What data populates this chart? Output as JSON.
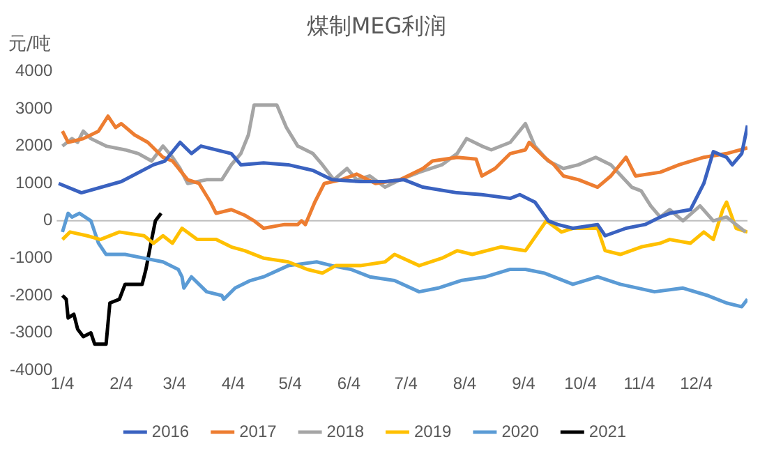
{
  "chart_data": {
    "type": "line",
    "title": "煤制MEG利润",
    "ylabel": "元/吨",
    "xlim": [
      "--01-01",
      "--12-31"
    ],
    "ylim": [
      -4000,
      4000
    ],
    "xticks": [
      {
        "value": "--01-04",
        "label": "1/4"
      },
      {
        "value": "--02-04",
        "label": "2/4"
      },
      {
        "value": "--03-04",
        "label": "3/4"
      },
      {
        "value": "--04-04",
        "label": "4/4"
      },
      {
        "value": "--05-04",
        "label": "5/4"
      },
      {
        "value": "--06-04",
        "label": "6/4"
      },
      {
        "value": "--07-04",
        "label": "7/4"
      },
      {
        "value": "--08-04",
        "label": "8/4"
      },
      {
        "value": "--09-04",
        "label": "9/4"
      },
      {
        "value": "--10-04",
        "label": "10/4"
      },
      {
        "value": "--11-04",
        "label": "11/4"
      },
      {
        "value": "--12-04",
        "label": "12/4"
      }
    ],
    "yticks": [
      -4000,
      -3000,
      -2000,
      -1000,
      0,
      1000,
      2000,
      3000,
      4000
    ],
    "grid": false,
    "ref_lines": [
      {
        "axis": "y",
        "value": 0,
        "color": "#bfbfbf"
      }
    ],
    "legend": "bottom",
    "marker": "none",
    "line_style": "solid",
    "series": [
      {
        "name": "2016",
        "color": "#3a62c0",
        "x": [
          "--01-02",
          "--01-14",
          "--02-04",
          "--02-21",
          "--02-27",
          "--03-07",
          "--03-13",
          "--03-18",
          "--04-03",
          "--04-08",
          "--04-20",
          "--05-03",
          "--05-16",
          "--05-26",
          "--06-10",
          "--06-23",
          "--07-03",
          "--07-13",
          "--07-31",
          "--08-13",
          "--08-28",
          "--09-02",
          "--09-10",
          "--09-17",
          "--09-22",
          "--09-30",
          "--10-13",
          "--10-17",
          "--10-28",
          "--11-07",
          "--11-15",
          "--11-20",
          "--12-01",
          "--12-08",
          "--12-13",
          "--12-20",
          "--12-23",
          "--12-28",
          "--12-31"
        ],
        "values": [
          1000,
          750,
          1050,
          1500,
          1600,
          2100,
          1800,
          2000,
          1800,
          1500,
          1550,
          1500,
          1350,
          1100,
          1050,
          1050,
          1100,
          900,
          750,
          700,
          600,
          700,
          500,
          0,
          -100,
          -200,
          -100,
          -400,
          -200,
          -100,
          100,
          200,
          300,
          1000,
          1850,
          1700,
          1500,
          1800,
          2550
        ]
      },
      {
        "name": "2017",
        "color": "#ed7d31",
        "x": [
          "--01-04",
          "--01-07",
          "--01-15",
          "--01-23",
          "--01-28",
          "--02-01",
          "--02-04",
          "--02-11",
          "--02-18",
          "--02-26",
          "--03-03",
          "--03-11",
          "--03-17",
          "--03-23",
          "--03-26",
          "--04-03",
          "--04-10",
          "--04-15",
          "--04-20",
          "--05-01",
          "--05-08",
          "--05-10",
          "--05-12",
          "--05-17",
          "--05-22",
          "--05-31",
          "--06-08",
          "--06-18",
          "--07-01",
          "--07-13",
          "--07-18",
          "--07-31",
          "--08-10",
          "--08-13",
          "--08-20",
          "--08-28",
          "--09-05",
          "--09-07",
          "--09-15",
          "--09-20",
          "--09-25",
          "--10-03",
          "--10-13",
          "--10-20",
          "--10-28",
          "--11-02",
          "--11-15",
          "--11-25",
          "--12-08",
          "--12-20",
          "--12-31"
        ],
        "values": [
          2400,
          2100,
          2200,
          2400,
          2800,
          2500,
          2600,
          2300,
          2100,
          1700,
          1600,
          1100,
          1000,
          500,
          200,
          300,
          150,
          0,
          -200,
          -100,
          -100,
          0,
          -100,
          500,
          1000,
          1100,
          1250,
          1000,
          1100,
          1400,
          1600,
          1700,
          1650,
          1200,
          1400,
          1800,
          1900,
          2100,
          1700,
          1500,
          1200,
          1100,
          900,
          1200,
          1700,
          1200,
          1300,
          1500,
          1700,
          1800,
          1950
        ]
      },
      {
        "name": "2018",
        "color": "#a5a5a5",
        "x": [
          "--01-04",
          "--01-09",
          "--01-12",
          "--01-15",
          "--01-19",
          "--01-27",
          "--02-06",
          "--02-13",
          "--02-20",
          "--02-26",
          "--03-03",
          "--03-07",
          "--03-11",
          "--03-21",
          "--03-29",
          "--04-03",
          "--04-08",
          "--04-12",
          "--04-15",
          "--04-27",
          "--05-02",
          "--05-08",
          "--05-16",
          "--05-21",
          "--05-27",
          "--06-03",
          "--06-08",
          "--06-15",
          "--06-23",
          "--07-01",
          "--07-11",
          "--07-23",
          "--07-31",
          "--08-05",
          "--08-13",
          "--08-18",
          "--08-28",
          "--09-05",
          "--09-10",
          "--09-17",
          "--09-25",
          "--10-03",
          "--10-12",
          "--10-20",
          "--10-31",
          "--11-05",
          "--11-10",
          "--11-15",
          "--11-20",
          "--11-27",
          "--12-06",
          "--12-13",
          "--12-20",
          "--12-25",
          "--12-30"
        ],
        "values": [
          2000,
          2200,
          2100,
          2400,
          2200,
          2000,
          1900,
          1800,
          1600,
          2000,
          1700,
          1400,
          1000,
          1100,
          1100,
          1500,
          1800,
          2300,
          3100,
          3100,
          2500,
          2000,
          1800,
          1500,
          1100,
          1400,
          1100,
          1200,
          900,
          1100,
          1300,
          1500,
          1800,
          2200,
          2000,
          1900,
          2100,
          2600,
          2000,
          1600,
          1400,
          1500,
          1700,
          1500,
          900,
          800,
          400,
          100,
          300,
          0,
          400,
          0,
          100,
          -100,
          -300
        ]
      },
      {
        "name": "2019",
        "color": "#ffc000",
        "x": [
          "--01-04",
          "--01-08",
          "--01-17",
          "--01-24",
          "--02-03",
          "--02-16",
          "--02-21",
          "--02-26",
          "--03-03",
          "--03-08",
          "--03-16",
          "--03-26",
          "--04-03",
          "--04-10",
          "--04-20",
          "--05-03",
          "--05-13",
          "--05-21",
          "--05-28",
          "--06-10",
          "--06-23",
          "--06-28",
          "--07-11",
          "--07-23",
          "--07-31",
          "--08-08",
          "--08-23",
          "--09-05",
          "--09-16",
          "--09-24",
          "--09-30",
          "--10-13",
          "--10-17",
          "--10-25",
          "--11-05",
          "--11-15",
          "--11-20",
          "--12-01",
          "--12-08",
          "--12-13",
          "--12-18",
          "--12-20",
          "--12-25",
          "--12-31"
        ],
        "values": [
          -500,
          -300,
          -400,
          -500,
          -300,
          -400,
          -600,
          -400,
          -600,
          -200,
          -500,
          -500,
          -700,
          -800,
          -1000,
          -1100,
          -1300,
          -1400,
          -1200,
          -1200,
          -1100,
          -900,
          -1200,
          -1000,
          -800,
          -900,
          -700,
          -800,
          0,
          -300,
          -200,
          -200,
          -800,
          -900,
          -700,
          -600,
          -500,
          -600,
          -300,
          -500,
          300,
          500,
          -200,
          -300
        ]
      },
      {
        "name": "2020",
        "color": "#5b9bd5",
        "x": [
          "--01-04",
          "--01-07",
          "--01-09",
          "--01-13",
          "--01-19",
          "--01-23",
          "--01-27",
          "--02-06",
          "--02-16",
          "--02-26",
          "--03-06",
          "--03-08",
          "--03-09",
          "--03-13",
          "--03-21",
          "--03-29",
          "--03-30",
          "--04-05",
          "--04-13",
          "--04-20",
          "--05-03",
          "--05-18",
          "--05-26",
          "--06-05",
          "--06-15",
          "--06-28",
          "--07-11",
          "--07-21",
          "--08-02",
          "--08-15",
          "--08-28",
          "--09-05",
          "--09-15",
          "--09-30",
          "--10-13",
          "--10-25",
          "--11-12",
          "--11-27",
          "--12-10",
          "--12-20",
          "--12-28",
          "--12-31"
        ],
        "values": [
          -300,
          200,
          100,
          200,
          0,
          -600,
          -900,
          -900,
          -1000,
          -1100,
          -1300,
          -1500,
          -1800,
          -1500,
          -1900,
          -2000,
          -2100,
          -1800,
          -1600,
          -1500,
          -1200,
          -1100,
          -1200,
          -1300,
          -1500,
          -1600,
          -1900,
          -1800,
          -1600,
          -1500,
          -1300,
          -1300,
          -1400,
          -1700,
          -1500,
          -1700,
          -1900,
          -1800,
          -2000,
          -2200,
          -2300,
          -2100
        ]
      },
      {
        "name": "2021",
        "color": "#000000",
        "x": [
          "--01-04",
          "--01-06",
          "--01-07",
          "--01-10",
          "--01-12",
          "--01-15",
          "--01-19",
          "--01-21",
          "--01-27",
          "--01-29",
          "--02-03",
          "--02-06",
          "--02-15",
          "--02-17",
          "--02-20",
          "--02-22",
          "--02-25"
        ],
        "values": [
          -2000,
          -2100,
          -2600,
          -2500,
          -2900,
          -3100,
          -3000,
          -3300,
          -3300,
          -2200,
          -2100,
          -1700,
          -1700,
          -1300,
          -500,
          0,
          200
        ]
      }
    ]
  }
}
